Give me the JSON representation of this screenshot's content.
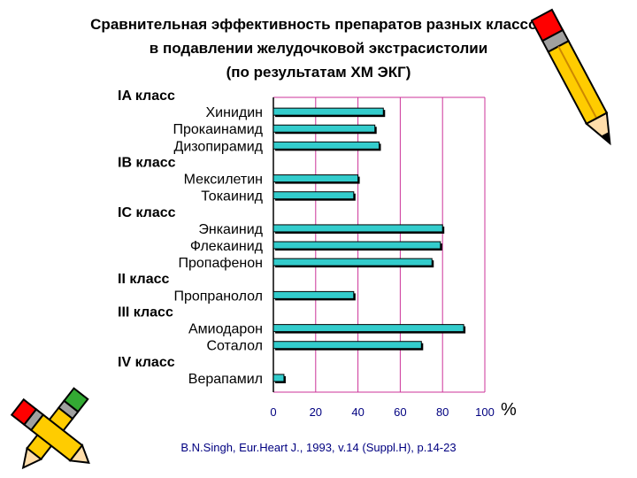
{
  "title_lines": [
    "Сравнительная эффективность препаратов разных классов",
    "в подавлении желудочковой экстрасистолии",
    "(по результатам ХМ ЭКГ)"
  ],
  "x_unit": "%",
  "source": "B.N.Singh, Eur.Heart J., 1993, v.14 (Suppl.H), p.14-23",
  "colors": {
    "bar": "#33cccc",
    "grid": "#cc3399",
    "text_group": "#000000"
  },
  "chart_data": {
    "type": "bar",
    "orientation": "horizontal",
    "xlim": [
      0,
      100
    ],
    "x_ticks": [
      "0",
      "20",
      "40",
      "60",
      "80",
      "100"
    ],
    "grid": true,
    "groups": [
      {
        "label": "IA класс",
        "items": [
          {
            "name": "Хинидин",
            "value": 52
          },
          {
            "name": "Прокаинамид",
            "value": 48
          },
          {
            "name": "Дизопирамид",
            "value": 50
          }
        ]
      },
      {
        "label": "IB класс",
        "items": [
          {
            "name": "Мексилетин",
            "value": 40
          },
          {
            "name": "Токаинид",
            "value": 38
          }
        ]
      },
      {
        "label": "IC класс",
        "items": [
          {
            "name": "Энкаинид",
            "value": 80
          },
          {
            "name": "Флекаинид",
            "value": 79
          },
          {
            "name": "Пропафенон",
            "value": 75
          }
        ]
      },
      {
        "label": "II класс",
        "items": [
          {
            "name": "Пропранолол",
            "value": 38
          }
        ]
      },
      {
        "label": "III класс",
        "items": [
          {
            "name": "Амиодарон",
            "value": 90
          },
          {
            "name": "Соталол",
            "value": 70
          }
        ]
      },
      {
        "label": "IV класс",
        "items": [
          {
            "name": "Верапамил",
            "value": 5
          }
        ]
      }
    ]
  }
}
